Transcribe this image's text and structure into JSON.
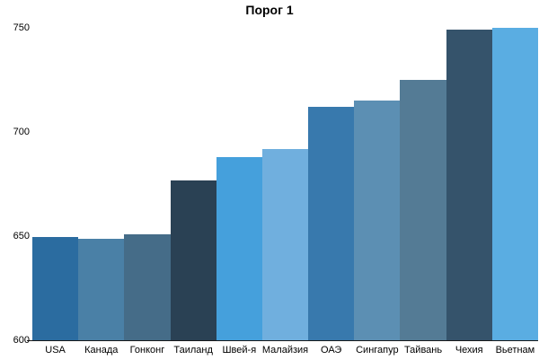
{
  "chart_data": {
    "type": "bar",
    "title": "Порог 1",
    "categories": [
      "USA",
      "Канада",
      "Гонконг",
      "Таиланд",
      "Швей-я",
      "Малайзия",
      "ОАЭ",
      "Сингапур",
      "Тайвань",
      "Чехия",
      "Вьетнам"
    ],
    "values": [
      650,
      649,
      651,
      677,
      688,
      692,
      712,
      715,
      725,
      749,
      750
    ],
    "bar_colors": [
      "#2B6CA0",
      "#4A80A6",
      "#456C88",
      "#2A4154",
      "#45A0DC",
      "#70AFDE",
      "#3879AD",
      "#5C8FB3",
      "#547B95",
      "#35536B",
      "#5AADE2"
    ],
    "xlabel": "",
    "ylabel": "",
    "ylim": [
      600,
      750
    ],
    "y_ticks": [
      600,
      650,
      700,
      750
    ],
    "grid": false,
    "legend": false,
    "bar_gap": 0,
    "axis_color": "#1a1a1a",
    "text_color": "#000000",
    "background": "#ffffff"
  }
}
